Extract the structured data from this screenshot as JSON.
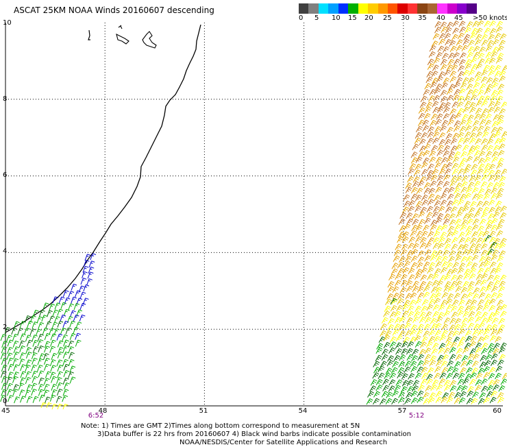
{
  "title": "ASCAT 25KM NOAA Winds 20160607 descending",
  "legend": {
    "labels": [
      "0",
      "5",
      "10",
      "15",
      "20",
      "25",
      "30",
      "35",
      "40",
      "45",
      ">50 knots"
    ],
    "colors": [
      "#404040",
      "#808080",
      "#00e0ff",
      "#00a0ff",
      "#0030ff",
      "#00b000",
      "#ffff00",
      "#ffcc00",
      "#ff9900",
      "#ff5500",
      "#dd0000",
      "#ff3333",
      "#8b4513",
      "#aa6633",
      "#ff33ff",
      "#cc00cc",
      "#8800cc",
      "#550088"
    ]
  },
  "map": {
    "x_ticks": [
      "45",
      "48",
      "51",
      "54",
      "57",
      "60"
    ],
    "y_ticks": [
      "0",
      "2",
      "4",
      "6",
      "8",
      "10"
    ],
    "pass_times": [
      "6:52",
      "5:12"
    ],
    "pass_time_color": "#800080",
    "grid": true,
    "grid_style": "dotted"
  },
  "notes": {
    "line1": "Note: 1) Times are GMT 2)Times along bottom correspond to measurement at 5N",
    "line2": "3)Data buffer is 22 hrs from 20160607 4) Black wind barbs indicate possible contamination",
    "line3": "NOAA/NESDIS/Center for Satellite Applications and Research"
  },
  "barb_colors": {
    "blue": "#0000cc",
    "green": "#00aa00",
    "dark_green": "#006400",
    "yellow": "#ffff00",
    "gold": "#e6c800",
    "orange": "#e6a000",
    "brown": "#c07020"
  }
}
